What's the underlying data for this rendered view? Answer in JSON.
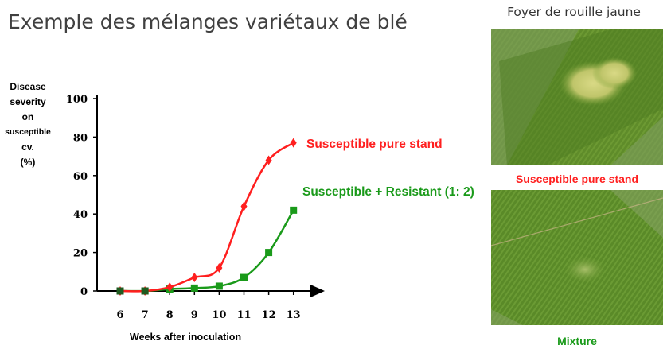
{
  "slide": {
    "title": "Exemple des mélanges variétaux de blé",
    "photo_heading": "Foyer de rouille jaune",
    "photo_captions": [
      "Susceptible pure stand",
      "Mixture"
    ]
  },
  "chart_data": {
    "type": "line",
    "xlabel": "Weeks after inoculation",
    "ylabel_lines": [
      "Disease",
      "severity",
      "on",
      "susceptible",
      "cv.",
      "(%)"
    ],
    "x": [
      6,
      7,
      8,
      9,
      10,
      11,
      12,
      13
    ],
    "ylim": [
      0,
      100
    ],
    "yticks": [
      0,
      20,
      40,
      60,
      80,
      100
    ],
    "grid": false,
    "legend": "inline labels at line ends",
    "series": [
      {
        "name": "Susceptible pure stand",
        "color": "#ff1f1f",
        "marker": "diamond",
        "values": [
          0,
          0,
          2,
          7,
          12,
          44,
          68,
          77
        ]
      },
      {
        "name": "Susceptible + Resistant (1: 2)",
        "color": "#1a9a1a",
        "marker": "square",
        "values": [
          0,
          0,
          1,
          1.5,
          2.5,
          7,
          20,
          42
        ]
      }
    ]
  }
}
